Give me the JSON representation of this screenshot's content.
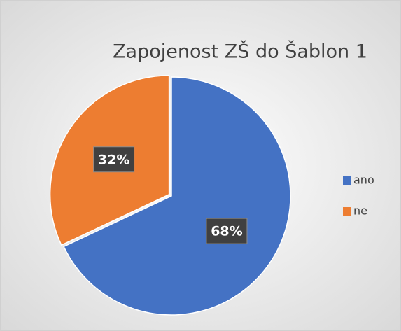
{
  "chart_data": {
    "type": "pie",
    "title": "Zapojenost ZŠ do Šablon 1",
    "categories": [
      "ano",
      "ne"
    ],
    "values": [
      68,
      32
    ],
    "value_labels": [
      "68%",
      "32%"
    ],
    "colors": [
      "#4472c4",
      "#ed7d31"
    ],
    "legend": "right"
  }
}
